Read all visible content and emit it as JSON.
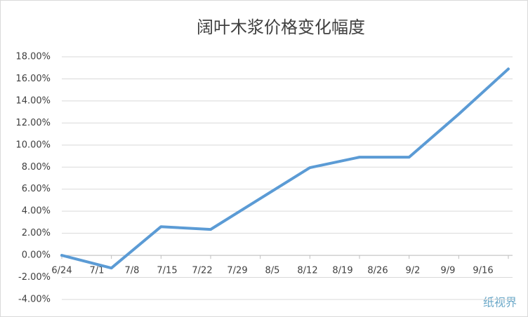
{
  "chart_data": {
    "type": "line",
    "title": "阔叶木浆价格变化幅度",
    "x_labels": [
      "6/24",
      "7/1",
      "7/8",
      "7/15",
      "7/22",
      "7/29",
      "8/5",
      "8/12",
      "8/19",
      "8/26",
      "9/2",
      "9/9",
      "9/16"
    ],
    "series": [
      {
        "name": "阔叶木浆",
        "color": "#5b9bd5",
        "values": [
          0,
          -1.15,
          2.6,
          2.35,
          5.15,
          7.95,
          8.9,
          8.9,
          12.8,
          16.9
        ]
      }
    ],
    "ylim": [
      -4,
      18
    ],
    "yticks": [
      {
        "value": -4,
        "label": "-4.00%"
      },
      {
        "value": -2,
        "label": "-2.00%"
      },
      {
        "value": 0,
        "label": "0.00%"
      },
      {
        "value": 2,
        "label": "2.00%"
      },
      {
        "value": 4,
        "label": "4.00%"
      },
      {
        "value": 6,
        "label": "6.00%"
      },
      {
        "value": 8,
        "label": "8.00%"
      },
      {
        "value": 10,
        "label": "10.00%"
      },
      {
        "value": 12,
        "label": "12.00%"
      },
      {
        "value": 14,
        "label": "14.00%"
      },
      {
        "value": 16,
        "label": "16.00%"
      },
      {
        "value": 18,
        "label": "18.00%"
      }
    ],
    "grid": true,
    "watermark": "纸视界"
  }
}
